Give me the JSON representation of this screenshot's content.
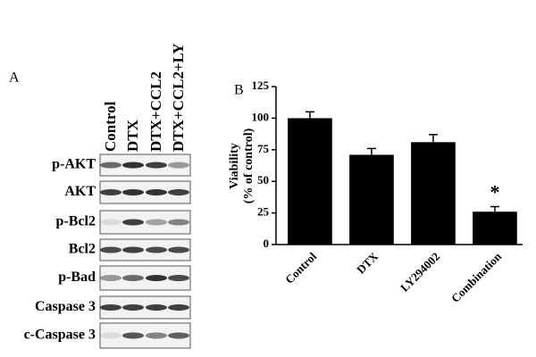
{
  "panel_a": {
    "label": "A",
    "lanes": [
      "Control",
      "DTX",
      "DTX+CCL2",
      "DTX+CCL2+LY"
    ],
    "rows": [
      "p-AKT",
      "AKT",
      "p-Bcl2",
      "Bcl2",
      "p-Bad",
      "Caspase 3",
      "c-Caspase 3"
    ]
  },
  "chart_data": {
    "type": "bar",
    "panel_label": "B",
    "ylabel": [
      "Viability",
      "(% of control)"
    ],
    "categories": [
      "Control",
      "DTX",
      "LY294002",
      "Combination"
    ],
    "values": [
      100,
      71,
      81,
      26
    ],
    "errors": [
      5,
      5,
      6,
      4
    ],
    "color": "#000000",
    "annotations": [
      {
        "category": 3,
        "text": "*"
      }
    ],
    "ylim": [
      0,
      125
    ],
    "yticks": [
      0,
      25,
      50,
      75,
      100,
      125
    ],
    "grid": false
  }
}
